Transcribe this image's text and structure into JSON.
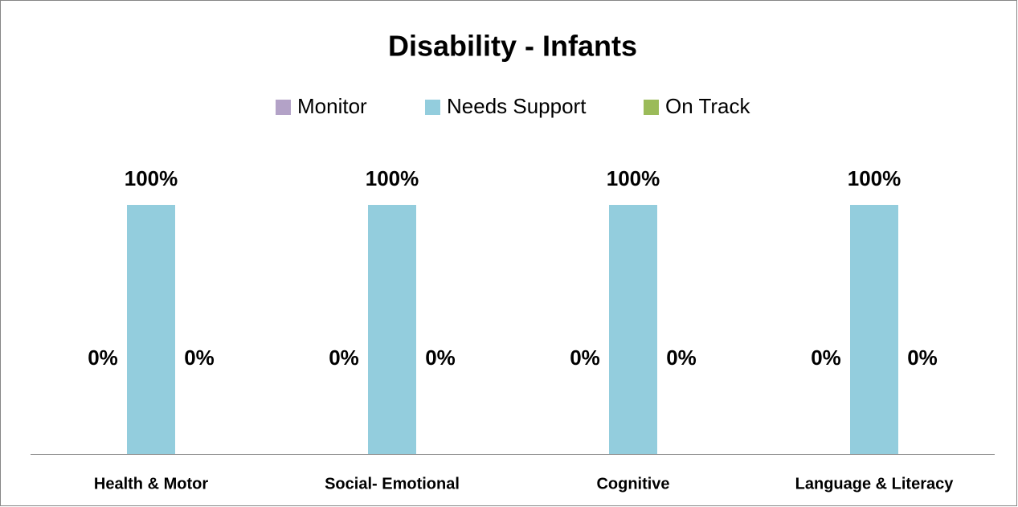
{
  "chart_data": {
    "type": "bar",
    "title": "Disability - Infants",
    "categories": [
      "Health & Motor",
      "Social- Emotional",
      "Cognitive",
      "Language & Literacy"
    ],
    "series": [
      {
        "name": "Monitor",
        "color": "#b3a2c7",
        "values": [
          0,
          0,
          0,
          0
        ],
        "value_labels": [
          "0%",
          "0%",
          "0%",
          "0%"
        ]
      },
      {
        "name": "Needs Support",
        "color": "#93cddd",
        "values": [
          100,
          100,
          100,
          100
        ],
        "value_labels": [
          "100%",
          "100%",
          "100%",
          "100%"
        ]
      },
      {
        "name": "On Track",
        "color": "#9bbb59",
        "values": [
          0,
          0,
          0,
          0
        ],
        "value_labels": [
          "0%",
          "0%",
          "0%",
          "0%"
        ]
      }
    ],
    "legend": "top"
  }
}
